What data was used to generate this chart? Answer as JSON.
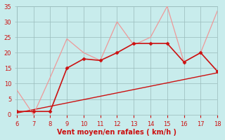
{
  "xlabel": "Vent moyen/en rafales ( km/h )",
  "background_color": "#c8ecec",
  "grid_color": "#99bbbb",
  "xmin": 6,
  "xmax": 18,
  "ymin": 0,
  "ymax": 35,
  "yticks": [
    0,
    5,
    10,
    15,
    20,
    25,
    30,
    35
  ],
  "xticks": [
    6,
    7,
    8,
    9,
    10,
    11,
    12,
    13,
    14,
    15,
    16,
    17,
    18
  ],
  "line1_x": [
    6,
    7,
    8,
    9,
    10,
    11,
    12,
    13,
    14,
    15,
    16,
    17,
    18
  ],
  "line1_y": [
    1,
    1,
    1,
    15,
    18,
    17.5,
    20,
    23,
    23,
    23,
    17,
    20,
    14
  ],
  "line1_color": "#cc1111",
  "line1_lw": 1.2,
  "line1_marker": "D",
  "line1_markersize": 2.5,
  "line2_x": [
    6,
    7,
    8,
    9,
    10,
    11,
    12,
    13,
    14,
    15,
    16,
    17,
    18
  ],
  "line2_y": [
    8,
    0,
    12,
    24.5,
    20,
    17.5,
    30,
    22.5,
    25,
    35,
    17,
    20,
    33.5
  ],
  "line2_color": "#ee9999",
  "line2_lw": 0.9,
  "trend_x": [
    6,
    18
  ],
  "trend_y": [
    0.5,
    13.5
  ],
  "trend_color": "#cc1111",
  "trend_lw": 1.0,
  "xlabel_fontsize": 7,
  "tick_labelsize": 6
}
